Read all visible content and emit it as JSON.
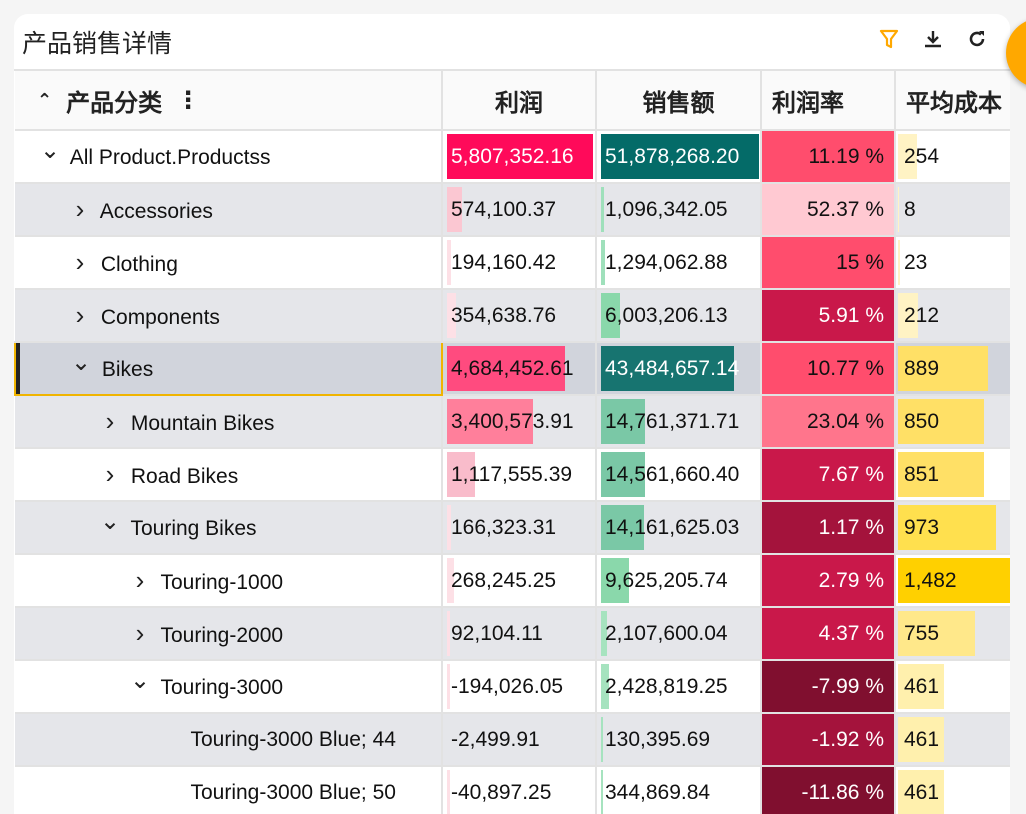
{
  "title": "产品销售详情",
  "toolbar": {
    "filter_icon": "filter-icon",
    "download_icon": "download-icon",
    "refresh_icon": "refresh-icon",
    "accent": "#ffa800"
  },
  "columns": {
    "name": "产品分类",
    "profit": "利润",
    "sales": "销售额",
    "rate": "利润率",
    "avg_cost": "平均成本"
  },
  "rows": [
    {
      "label": "All Product.Productss",
      "level": 0,
      "state": "expanded",
      "profit": "5,807,352.16",
      "pf": 1.0,
      "pc": "#ff0a5a",
      "pt": "#fff",
      "sales": "51,878,268.20",
      "sf": 1.0,
      "sc": "#046b68",
      "st": "#fff",
      "rate": "11.19 %",
      "rc": "#ff4d6d",
      "rt": "#111",
      "cost": "254",
      "cf": 0.17,
      "cc": "#fff3c4"
    },
    {
      "label": "Accessories",
      "level": 1,
      "state": "collapsed",
      "profit": "574,100.37",
      "pf": 0.1,
      "pc": "#fbc7d2",
      "sales": "1,096,342.05",
      "sf": 0.02,
      "sc": "#9fe0bb",
      "rate": "52.37 %",
      "rc": "#ffc9d2",
      "rt": "#111",
      "cost": "8",
      "cf": 0.01,
      "cc": "#fff3c4"
    },
    {
      "label": "Clothing",
      "level": 1,
      "state": "collapsed",
      "profit": "194,160.42",
      "pf": 0.03,
      "pc": "#fde0e6",
      "sales": "1,294,062.88",
      "sf": 0.025,
      "sc": "#9fe0bb",
      "rate": "15 %",
      "rc": "#ff4d6d",
      "rt": "#111",
      "cost": "23",
      "cf": 0.02,
      "cc": "#fff3c4"
    },
    {
      "label": "Components",
      "level": 1,
      "state": "collapsed",
      "profit": "354,638.76",
      "pf": 0.06,
      "pc": "#fde0e6",
      "sales": "6,003,206.13",
      "sf": 0.12,
      "sc": "#8ad8ab",
      "rate": "5.91 %",
      "rc": "#c9184a",
      "rt": "#fff",
      "cost": "212",
      "cf": 0.18,
      "cc": "#fff3c4"
    },
    {
      "label": "Bikes",
      "level": 1,
      "state": "expanded",
      "selected": true,
      "profit": "4,684,452.61",
      "pf": 0.81,
      "pc": "#ff4b7f",
      "pt": "#111",
      "sales": "43,484,657.14",
      "sf": 0.84,
      "sc": "#177470",
      "st": "#fff",
      "rate": "10.77 %",
      "rc": "#ff4d6d",
      "rt": "#111",
      "cost": "889",
      "cf": 0.8,
      "cc": "#ffe066"
    },
    {
      "label": "Mountain Bikes",
      "level": 2,
      "state": "collapsed",
      "profit": "3,400,573.91",
      "pf": 0.59,
      "pc": "#ff7f9b",
      "sales": "14,761,371.71",
      "sf": 0.28,
      "sc": "#7ac8a6",
      "rate": "23.04 %",
      "rc": "#ff758c",
      "rt": "#111",
      "cost": "850",
      "cf": 0.76,
      "cc": "#ffe066"
    },
    {
      "label": "Road Bikes",
      "level": 2,
      "state": "collapsed",
      "profit": "1,117,555.39",
      "pf": 0.19,
      "pc": "#f9bccb",
      "sales": "14,561,660.40",
      "sf": 0.28,
      "sc": "#7ac8a6",
      "rate": "7.67 %",
      "rc": "#c9184a",
      "rt": "#fff",
      "cost": "851",
      "cf": 0.76,
      "cc": "#ffe066"
    },
    {
      "label": "Touring Bikes",
      "level": 2,
      "state": "expanded",
      "profit": "166,323.31",
      "pf": 0.03,
      "pc": "#fde0e6",
      "sales": "14,161,625.03",
      "sf": 0.27,
      "sc": "#7ac8a6",
      "rate": "1.17 %",
      "rc": "#a4133c",
      "rt": "#fff",
      "cost": "973",
      "cf": 0.87,
      "cc": "#ffe04e"
    },
    {
      "label": "Touring-1000",
      "level": 3,
      "state": "collapsed",
      "profit": "268,245.25",
      "pf": 0.05,
      "pc": "#fde0e6",
      "sales": "9,625,205.74",
      "sf": 0.18,
      "sc": "#8ad8ab",
      "rate": "2.79 %",
      "rc": "#c9184a",
      "rt": "#fff",
      "cost": "1,482",
      "cf": 1.0,
      "cc": "#ffd000"
    },
    {
      "label": "Touring-2000",
      "level": 3,
      "state": "collapsed",
      "profit": "92,104.11",
      "pf": 0.02,
      "pc": "#fde0e6",
      "sales": "2,107,600.04",
      "sf": 0.04,
      "sc": "#a6e3bf",
      "rate": "4.37 %",
      "rc": "#c9184a",
      "rt": "#fff",
      "cost": "755",
      "cf": 0.68,
      "cc": "#ffe88a"
    },
    {
      "label": "Touring-3000",
      "level": 3,
      "state": "expanded",
      "profit": "-194,026.05",
      "pf": 0.02,
      "pc": "#fde0e6",
      "sales": "2,428,819.25",
      "sf": 0.05,
      "sc": "#a6e3bf",
      "rate": "-7.99 %",
      "rc": "#800f2f",
      "rt": "#fff",
      "cost": "461",
      "cf": 0.41,
      "cc": "#fff0ad"
    },
    {
      "label": "Touring-3000 Blue; 44",
      "level": 4,
      "state": "leaf",
      "profit": "-2,499.91",
      "pf": 0,
      "pc": "#fde0e6",
      "sales": "130,395.69",
      "sf": 0.005,
      "sc": "#a6e3bf",
      "rate": "-1.92 %",
      "rc": "#a4133c",
      "rt": "#fff",
      "cost": "461",
      "cf": 0.41,
      "cc": "#fff0ad"
    },
    {
      "label": "Touring-3000 Blue; 50",
      "level": 4,
      "state": "leaf",
      "profit": "-40,897.25",
      "pf": 0.005,
      "pc": "#fde0e6",
      "sales": "344,869.84",
      "sf": 0.007,
      "sc": "#a6e3bf",
      "rate": "-11.86 %",
      "rc": "#800f2f",
      "rt": "#fff",
      "cost": "461",
      "cf": 0.41,
      "cc": "#fff0ad"
    }
  ]
}
